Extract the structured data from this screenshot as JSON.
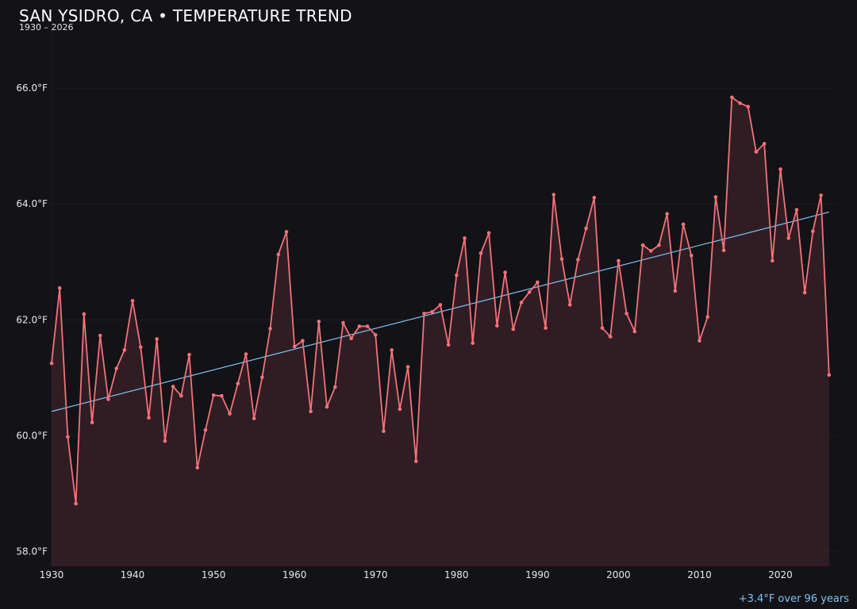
{
  "header": {
    "title": "SAN YSIDRO, CA • TEMPERATURE TREND",
    "subtitle": "1930 – 2026"
  },
  "footer": {
    "summary": "+3.4°F over 96 years"
  },
  "colors": {
    "background": "#131217",
    "line": "#f07378",
    "fill": "#341f26",
    "trend": "#7cc4f2",
    "grid": "#1e1d22"
  },
  "chart_data": {
    "type": "line",
    "title": "SAN YSIDRO, CA • TEMPERATURE TREND",
    "subtitle": "1930 – 2026",
    "xlabel": "",
    "ylabel": "",
    "y_unit": "°F",
    "xlim": [
      1930,
      2027
    ],
    "ylim": [
      57.75,
      67.0
    ],
    "x_ticks": [
      1930,
      1940,
      1950,
      1960,
      1970,
      1980,
      1990,
      2000,
      2010,
      2020
    ],
    "y_ticks": [
      "58.0°F",
      "60.0°F",
      "62.0°F",
      "64.0°F",
      "66.0°F"
    ],
    "y_tick_values": [
      58,
      60,
      62,
      64,
      66
    ],
    "grid": true,
    "fill_under_line": true,
    "x": [
      1930,
      1931,
      1932,
      1933,
      1934,
      1935,
      1936,
      1937,
      1938,
      1939,
      1940,
      1941,
      1942,
      1943,
      1944,
      1945,
      1946,
      1947,
      1948,
      1949,
      1950,
      1951,
      1952,
      1953,
      1954,
      1955,
      1956,
      1957,
      1958,
      1959,
      1960,
      1961,
      1962,
      1963,
      1964,
      1965,
      1966,
      1967,
      1968,
      1969,
      1970,
      1971,
      1972,
      1973,
      1974,
      1975,
      1976,
      1977,
      1978,
      1979,
      1980,
      1981,
      1982,
      1983,
      1984,
      1985,
      1986,
      1987,
      1988,
      1989,
      1990,
      1991,
      1992,
      1993,
      1994,
      1995,
      1996,
      1997,
      1998,
      1999,
      2000,
      2001,
      2002,
      2003,
      2004,
      2005,
      2006,
      2007,
      2008,
      2009,
      2010,
      2011,
      2012,
      2013,
      2014,
      2015,
      2016,
      2017,
      2018,
      2019,
      2020,
      2021,
      2022,
      2023,
      2024,
      2025,
      2026
    ],
    "series": [
      {
        "values": [
          61.25,
          62.55,
          59.98,
          58.83,
          62.1,
          60.23,
          61.73,
          60.63,
          61.16,
          61.48,
          62.33,
          61.53,
          60.31,
          61.67,
          59.91,
          60.85,
          60.69,
          61.4,
          59.45,
          60.1,
          60.7,
          60.69,
          60.38,
          60.9,
          61.41,
          60.3,
          61.01,
          61.85,
          63.13,
          63.52,
          61.54,
          61.64,
          60.42,
          61.97,
          60.5,
          60.84,
          61.95,
          61.68,
          61.89,
          61.89,
          61.74,
          60.08,
          61.48,
          60.46,
          61.19,
          59.56,
          62.11,
          62.14,
          62.26,
          61.57,
          62.77,
          63.41,
          61.6,
          63.15,
          63.5,
          61.9,
          62.82,
          61.84,
          62.3,
          62.48,
          62.65,
          61.86,
          64.16,
          63.05,
          62.26,
          63.04,
          63.58,
          64.11,
          61.86,
          61.71,
          63.02,
          62.11,
          61.8,
          63.29,
          63.19,
          63.29,
          63.83,
          62.5,
          63.65,
          63.11,
          61.64,
          62.05,
          64.12,
          63.2,
          65.84,
          65.74,
          65.68,
          64.9,
          65.04,
          63.02,
          64.6,
          63.41,
          63.9,
          62.47,
          63.53,
          64.15,
          61.05
        ]
      }
    ],
    "trend_line": {
      "x": [
        1930,
        2026
      ],
      "y": [
        60.42,
        63.86
      ]
    }
  }
}
